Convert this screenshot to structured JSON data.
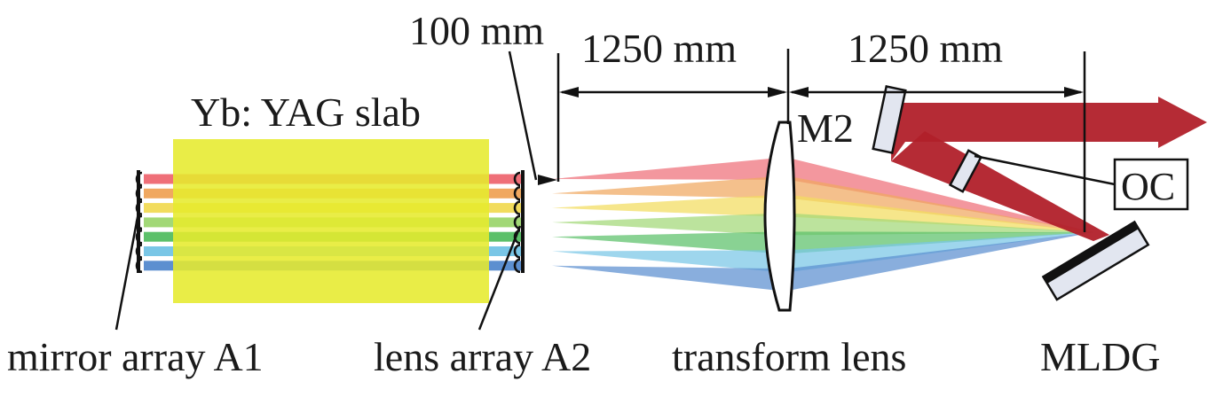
{
  "labels": {
    "dim_short": "100 mm",
    "dim_left": "1250 mm",
    "dim_right": "1250 mm",
    "slab": "Yb: YAG slab",
    "m2": "M2",
    "oc": "OC",
    "mirror_array": "mirror array A1",
    "lens_array": "lens array A2",
    "transform_lens": "transform lens",
    "mldg": "MLDG"
  },
  "colors": {
    "slab": "#e6ea2e",
    "output_beam": "#b1202a",
    "mirror_coating": "#111111",
    "mirror_body": "#e2e6f0",
    "beams": [
      "#ef6f78",
      "#f0a860",
      "#f2dc5e",
      "#a2d877",
      "#5cc06a",
      "#79c6e6",
      "#5c8fd0"
    ]
  }
}
